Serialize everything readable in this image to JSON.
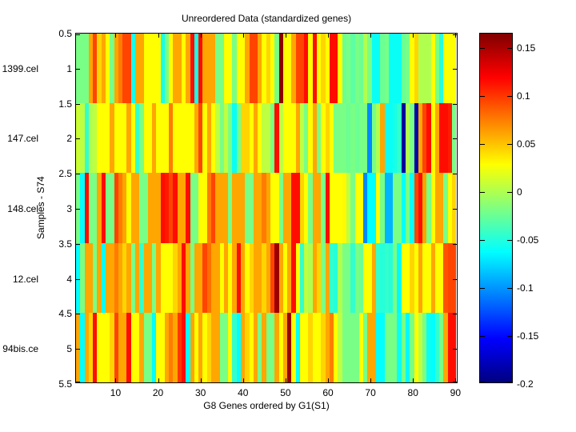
{
  "figure": {
    "title": "Unreordered Data (standardized genes)",
    "xlabel": "G8 Genes ordered by G1(S1)",
    "ylabel": "Samples - S74",
    "row_labels": [
      "1399.cel",
      "147.cel",
      "148.cel",
      "12.cel",
      "94bis.ce"
    ],
    "y_tick_labels": [
      "0.5",
      "1",
      "1.5",
      "2",
      "2.5",
      "3",
      "3.5",
      "4",
      "4.5",
      "5",
      "5.5"
    ],
    "x_tick_values": [
      10,
      20,
      30,
      40,
      50,
      60,
      70,
      80,
      90
    ],
    "colorbar_tick_labels": [
      "0.15",
      "0.1",
      "0.05",
      "0",
      "-0.05",
      "-0.1",
      "-0.15",
      "-0.2"
    ],
    "colorbar_tick_values": [
      0.15,
      0.1,
      0.05,
      0,
      -0.05,
      -0.1,
      -0.15,
      -0.2
    ],
    "frame_color": "#000000",
    "background_color": "#ffffff"
  },
  "chart_data": {
    "type": "heatmap",
    "title": "Unreordered Data (standardized genes)",
    "xlabel": "G8 Genes ordered by G1(S1)",
    "ylabel": "Samples - S74",
    "colormap": "jet",
    "vmin": -0.2,
    "vmax": 0.165,
    "n_cols": 90,
    "x_range": [
      0.5,
      90.5
    ],
    "y_range": [
      0.5,
      5.5
    ],
    "rows": [
      "1399.cel",
      "147.cel",
      "148.cel",
      "12.cel",
      "94bis.ce"
    ],
    "values": [
      [
        -0.02,
        -0.02,
        -0.02,
        0.06,
        0.095,
        0.043,
        0.06,
        0.028,
        -0.02,
        0.06,
        0.075,
        0.095,
        0.095,
        -0.055,
        0.06,
        0.06,
        0.028,
        0.028,
        0.028,
        0.028,
        -0.055,
        -0.02,
        0.028,
        0.06,
        0.06,
        0.028,
        0.06,
        0.115,
        -0.055,
        0.115,
        0.06,
        0.06,
        0.06,
        -0.02,
        -0.02,
        0.028,
        0.028,
        -0.02,
        0.028,
        0.028,
        0.06,
        0.095,
        0.095,
        0.06,
        0.028,
        0.043,
        0.028,
        -0.02,
        0.16,
        0.028,
        0.028,
        0.06,
        0.095,
        0.095,
        0.115,
        0.028,
        0.115,
        0.028,
        0.043,
        0.028,
        0.115,
        0.115,
        0.028,
        -0.025,
        -0.02,
        -0.03,
        -0.02,
        -0.025,
        0.0,
        -0.02,
        -0.06,
        -0.06,
        -0.025,
        -0.02,
        -0.06,
        -0.06,
        -0.06,
        -0.025,
        -0.02,
        0.028,
        0.043,
        0.0,
        0.0,
        0.0,
        0.028,
        -0.02,
        -0.05,
        0.028,
        0.028,
        0.028
      ],
      [
        0.01,
        0.005,
        -0.045,
        0.0,
        0.005,
        0.028,
        0.028,
        0.028,
        0.06,
        0.028,
        0.028,
        0.028,
        0.06,
        0.028,
        -0.045,
        -0.02,
        0.028,
        0.028,
        0.06,
        0.028,
        0.028,
        0.028,
        0.075,
        0.028,
        0.028,
        0.028,
        0.028,
        0.028,
        0.06,
        0.095,
        0.028,
        0.06,
        0.028,
        0.005,
        -0.02,
        0.005,
        -0.02,
        -0.06,
        -0.02,
        0.043,
        0.043,
        0.028,
        0.06,
        0.028,
        0.005,
        0.005,
        -0.02,
        0.115,
        0.005,
        0.028,
        0.028,
        0.028,
        0.06,
        0.005,
        -0.02,
        0.028,
        0.06,
        -0.02,
        0.028,
        0.043,
        0.028,
        -0.02,
        -0.02,
        -0.02,
        -0.025,
        -0.02,
        -0.025,
        -0.02,
        -0.02,
        -0.105,
        -0.02,
        0.0,
        0.06,
        -0.06,
        -0.06,
        -0.055,
        -0.045,
        -0.19,
        0.0,
        -0.02,
        -0.185,
        0.06,
        0.095,
        0.115,
        0.028,
        0.06,
        0.115,
        0.115,
        0.11,
        -0.02
      ],
      [
        -0.02,
        -0.063,
        0.115,
        -0.02,
        -0.02,
        0.06,
        0.115,
        -0.02,
        -0.02,
        0.095,
        0.075,
        0.06,
        0.028,
        0.06,
        0.06,
        -0.02,
        -0.02,
        0.06,
        0.06,
        0.06,
        0.115,
        0.11,
        0.095,
        0.115,
        0.06,
        0.06,
        0.115,
        -0.02,
        -0.02,
        0.028,
        0.028,
        0.075,
        0.095,
        0.06,
        0.06,
        0.06,
        -0.02,
        0.06,
        0.06,
        0.06,
        -0.02,
        -0.02,
        0.06,
        0.06,
        0.075,
        0.06,
        0.028,
        0.028,
        -0.02,
        0.06,
        0.06,
        0.115,
        0.115,
        0.043,
        0.028,
        -0.02,
        0.06,
        0.06,
        -0.02,
        0.115,
        0.028,
        0.028,
        0.028,
        0.03,
        0.005,
        -0.02,
        0.028,
        0.028,
        -0.105,
        -0.063,
        -0.063,
        0.028,
        -0.02,
        -0.09,
        -0.09,
        -0.02,
        -0.02,
        -0.063,
        -0.02,
        -0.06,
        0.095,
        0.115,
        0.06,
        -0.02,
        0.028,
        0.06,
        0.06,
        -0.02,
        0.028,
        0.043
      ],
      [
        -0.063,
        -0.02,
        0.06,
        0.06,
        -0.02,
        0.06,
        -0.063,
        0.06,
        0.06,
        0.075,
        0.06,
        0.043,
        0.06,
        -0.02,
        0.06,
        -0.045,
        0.06,
        0.06,
        -0.02,
        0.06,
        0.028,
        0.028,
        0.028,
        0.043,
        0.06,
        0.115,
        0.06,
        -0.02,
        0.06,
        0.06,
        0.095,
        0.08,
        0.06,
        0.06,
        0.028,
        0.06,
        0.028,
        0.06,
        0.115,
        0.06,
        0.028,
        0.043,
        0.06,
        0.06,
        0.043,
        0.06,
        0.095,
        0.155,
        0.06,
        0.028,
        0.06,
        0.115,
        0.028,
        -0.045,
        0.005,
        0.0,
        0.06,
        0.043,
        -0.02,
        0.06,
        -0.045,
        -0.05,
        0.0,
        -0.02,
        -0.02,
        -0.045,
        -0.02,
        -0.025,
        0.028,
        0.028,
        0.06,
        -0.045,
        -0.05,
        -0.045,
        -0.05,
        -0.02,
        -0.065,
        0.028,
        0.028,
        0.043,
        0.028,
        0.06,
        0.028,
        0.028,
        0.06,
        0.028,
        0.028,
        0.09,
        0.095,
        0.095
      ],
      [
        0.06,
        -0.063,
        0.06,
        0.043,
        0.115,
        0.028,
        0.028,
        0.028,
        0.043,
        0.095,
        0.06,
        0.06,
        0.115,
        0.028,
        0.028,
        0.06,
        -0.02,
        -0.02,
        -0.063,
        0.028,
        0.028,
        0.06,
        0.075,
        0.06,
        0.1,
        0.115,
        -0.063,
        0.06,
        0.028,
        0.06,
        0.028,
        0.043,
        0.06,
        0.06,
        -0.02,
        -0.02,
        0.028,
        -0.045,
        -0.063,
        0.06,
        0.043,
        0.028,
        0.06,
        -0.02,
        0.06,
        -0.02,
        -0.02,
        0.06,
        0.028,
        0.06,
        0.155,
        0.028,
        -0.063,
        0.028,
        0.028,
        0.043,
        0.028,
        0.028,
        0.043,
        0.06,
        0.075,
        0.028,
        0.005,
        -0.02,
        -0.02,
        -0.02,
        -0.02,
        0.028,
        -0.02,
        0.06,
        0.06,
        -0.063,
        -0.063,
        -0.02,
        -0.02,
        -0.02,
        -0.06,
        -0.02,
        -0.065,
        -0.02,
        0.028,
        0.005,
        -0.02,
        -0.06,
        -0.063,
        -0.045,
        -0.02,
        0.06,
        0.115,
        0.115
      ]
    ],
    "legend_position": "right-colorbar",
    "grid": false
  }
}
